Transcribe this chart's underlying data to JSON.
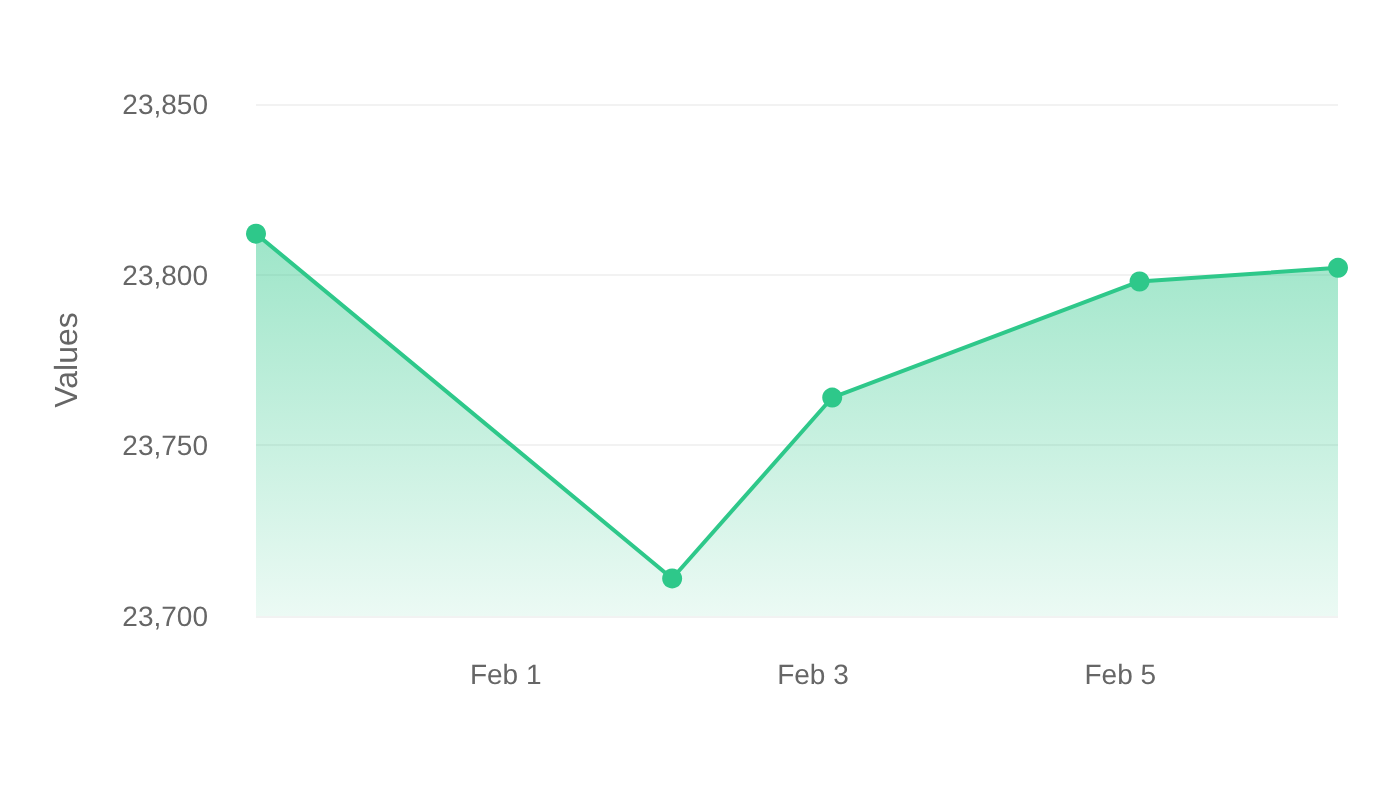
{
  "chart_data": {
    "type": "area",
    "ylabel": "Values",
    "x": [
      "--01-30T09:00",
      "--02-02T02:00",
      "--02-03T03:00",
      "--02-05T03:00",
      "--02-06T10:00"
    ],
    "series": [
      {
        "color": "#2ec88a",
        "values": [
          23812,
          23711,
          23764,
          23798,
          23802
        ]
      }
    ],
    "xlim": [
      "--01-30T09:00",
      "--02-06T10:00"
    ],
    "xticks": [
      {
        "value": "--02-01",
        "label": "Feb 1"
      },
      {
        "value": "--02-03",
        "label": "Feb 3"
      },
      {
        "value": "--02-05",
        "label": "Feb 5"
      }
    ],
    "ylim": [
      23700,
      23850
    ],
    "yticks": [
      {
        "value": 23700,
        "label": "23,700"
      },
      {
        "value": 23750,
        "label": "23,750"
      },
      {
        "value": 23800,
        "label": "23,800"
      },
      {
        "value": 23850,
        "label": "23,850"
      }
    ],
    "grid": "y",
    "marker": "circle",
    "line_style": "solid"
  }
}
